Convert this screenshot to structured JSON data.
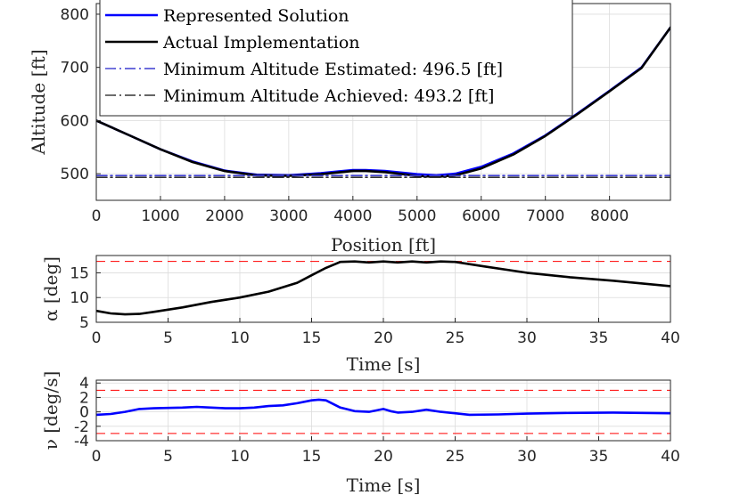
{
  "chart_data": [
    {
      "type": "line",
      "xlabel": "Position [ft]",
      "ylabel": "Altitude [ft]",
      "xlim": [
        0,
        8950
      ],
      "ylim": [
        450,
        820
      ],
      "xticks": [
        0,
        1000,
        2000,
        3000,
        4000,
        5000,
        6000,
        7000,
        8000
      ],
      "yticks": [
        500,
        600,
        700,
        800
      ],
      "grid": true,
      "legend_position": "top",
      "series": [
        {
          "name": "Represented Solution",
          "color": "#0000ff",
          "style": "solid",
          "x": [
            0,
            500,
            1000,
            1500,
            2000,
            2500,
            3000,
            3500,
            4000,
            4200,
            4500,
            5000,
            5300,
            5600,
            6000,
            6500,
            7000,
            7500,
            8000,
            8500,
            8950
          ],
          "y": [
            600,
            573,
            546,
            523,
            506,
            498,
            497,
            501,
            507,
            507,
            505,
            499,
            497,
            500,
            513,
            538,
            572,
            613,
            656,
            700,
            775
          ]
        },
        {
          "name": "Actual Implementation",
          "color": "#000000",
          "style": "solid",
          "x": [
            0,
            500,
            1000,
            1500,
            2000,
            2500,
            3000,
            3500,
            4000,
            4200,
            4500,
            5000,
            5300,
            5600,
            6000,
            6500,
            7000,
            7500,
            8000,
            8500,
            8950
          ],
          "y": [
            600,
            573,
            546,
            522,
            505,
            497,
            496,
            499,
            505,
            505,
            503,
            496,
            494,
            497,
            510,
            536,
            571,
            612,
            655,
            699,
            775
          ]
        },
        {
          "name": "Minimum Altitude Estimated: 496.5 [ft]",
          "color": "#3c3cd0",
          "style": "dashdot",
          "x": [
            0,
            8950
          ],
          "y": [
            496.5,
            496.5
          ]
        },
        {
          "name": "Minimum Altitude Achieved: 493.2 [ft]",
          "color": "#333333",
          "style": "dashdot",
          "x": [
            0,
            8950
          ],
          "y": [
            493.2,
            493.2
          ]
        }
      ]
    },
    {
      "type": "line",
      "xlabel": "Time [s]",
      "ylabel": "α [deg]",
      "xlim": [
        0,
        40
      ],
      "ylim": [
        5,
        18.5
      ],
      "xticks": [
        0,
        5,
        10,
        15,
        20,
        25,
        30,
        35,
        40
      ],
      "yticks": [
        5,
        10,
        15
      ],
      "grid": true,
      "limits": [
        {
          "y": 17.3,
          "color": "#ff0000",
          "style": "dashed"
        }
      ],
      "series": [
        {
          "color": "#000000",
          "style": "solid",
          "x": [
            0,
            1,
            2,
            3,
            4,
            6,
            8,
            10,
            12,
            14,
            15,
            16,
            17,
            18,
            19,
            20,
            21,
            22,
            23,
            24,
            25,
            27,
            30,
            33,
            36,
            40
          ],
          "y": [
            7.3,
            6.8,
            6.6,
            6.7,
            7.1,
            8.0,
            9.1,
            10.0,
            11.2,
            13.0,
            14.5,
            16.0,
            17.2,
            17.3,
            17.1,
            17.3,
            17.1,
            17.3,
            17.1,
            17.3,
            17.2,
            16.3,
            15.0,
            14.1,
            13.4,
            12.3
          ]
        }
      ]
    },
    {
      "type": "line",
      "xlabel": "Time [s]",
      "ylabel": "ν [deg/s]",
      "xlim": [
        0,
        40
      ],
      "ylim": [
        -4,
        4.4
      ],
      "xticks": [
        0,
        5,
        10,
        15,
        20,
        25,
        30,
        35,
        40
      ],
      "yticks": [
        -4,
        -2,
        0,
        2,
        4
      ],
      "grid": true,
      "limits": [
        {
          "y": 3,
          "color": "#ff0000",
          "style": "dashed"
        },
        {
          "y": -3,
          "color": "#ff0000",
          "style": "dashed"
        }
      ],
      "series": [
        {
          "color": "#0000ff",
          "style": "solid",
          "x": [
            0,
            1,
            2,
            3,
            4,
            6,
            7,
            8,
            9,
            10,
            11,
            12,
            13,
            14,
            15,
            15.5,
            16,
            17,
            18,
            19,
            20,
            20.5,
            21,
            22,
            23,
            24,
            25,
            26,
            28,
            30,
            33,
            36,
            40
          ],
          "y": [
            -0.4,
            -0.3,
            0.0,
            0.4,
            0.5,
            0.6,
            0.7,
            0.6,
            0.5,
            0.5,
            0.6,
            0.8,
            0.9,
            1.2,
            1.6,
            1.7,
            1.6,
            0.6,
            0.1,
            0.0,
            0.4,
            0.1,
            -0.1,
            0.0,
            0.3,
            0.0,
            -0.2,
            -0.4,
            -0.35,
            -0.25,
            -0.15,
            -0.1,
            -0.2
          ]
        }
      ]
    }
  ]
}
